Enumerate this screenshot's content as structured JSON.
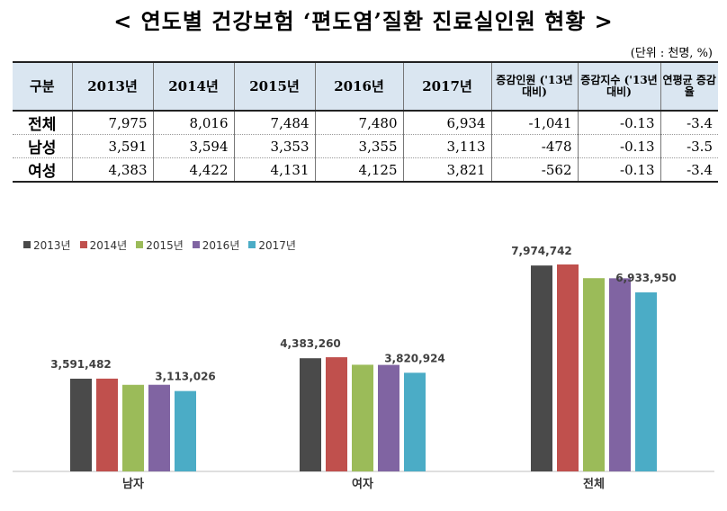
{
  "title": "< 연도별 건강보험 ‘편도염’질환 진료실인원 현황 >",
  "unit_note": "(단위 : 천명, %)",
  "table": {
    "headers": [
      "구분",
      "2013년",
      "2014년",
      "2015년",
      "2016년",
      "2017년",
      "증감인원 ('13년 대비)",
      "증감지수 ('13년 대비)",
      "연평균 증감율"
    ],
    "rows": [
      [
        "전체",
        "7,975",
        "8,016",
        "7,484",
        "7,480",
        "6,934",
        "-1,041",
        "-0.13",
        "-3.4"
      ],
      [
        "남성",
        "3,591",
        "3,594",
        "3,353",
        "3,355",
        "3,113",
        "-478",
        "-0.13",
        "-3.5"
      ],
      [
        "여성",
        "4,383",
        "4,422",
        "4,131",
        "4,125",
        "3,821",
        "-562",
        "-0.13",
        "-3.4"
      ]
    ]
  },
  "chart_data": {
    "type": "bar",
    "categories": [
      "남자",
      "여자",
      "전체"
    ],
    "series": [
      {
        "name": "2013년",
        "color": "#4a4a4a",
        "values": [
          3591482,
          4383260,
          7974742
        ]
      },
      {
        "name": "2014년",
        "color": "#c0504d",
        "values": [
          3594000,
          4422000,
          8016000
        ]
      },
      {
        "name": "2015년",
        "color": "#9bbb59",
        "values": [
          3353000,
          4131000,
          7484000
        ]
      },
      {
        "name": "2016년",
        "color": "#8064a2",
        "values": [
          3355000,
          4125000,
          7480000
        ]
      },
      {
        "name": "2017년",
        "color": "#4bacc6",
        "values": [
          3113026,
          3820924,
          6933950
        ]
      }
    ],
    "data_labels": [
      {
        "category": 0,
        "series": 0,
        "text": "3,591,482"
      },
      {
        "category": 0,
        "series": 4,
        "text": "3,113,026"
      },
      {
        "category": 1,
        "series": 0,
        "text": "4,383,260"
      },
      {
        "category": 1,
        "series": 4,
        "text": "3,820,924"
      },
      {
        "category": 2,
        "series": 0,
        "text": "7,974,742"
      },
      {
        "category": 2,
        "series": 4,
        "text": "6,933,950"
      }
    ],
    "legend_position": "top-left",
    "grid": false
  }
}
